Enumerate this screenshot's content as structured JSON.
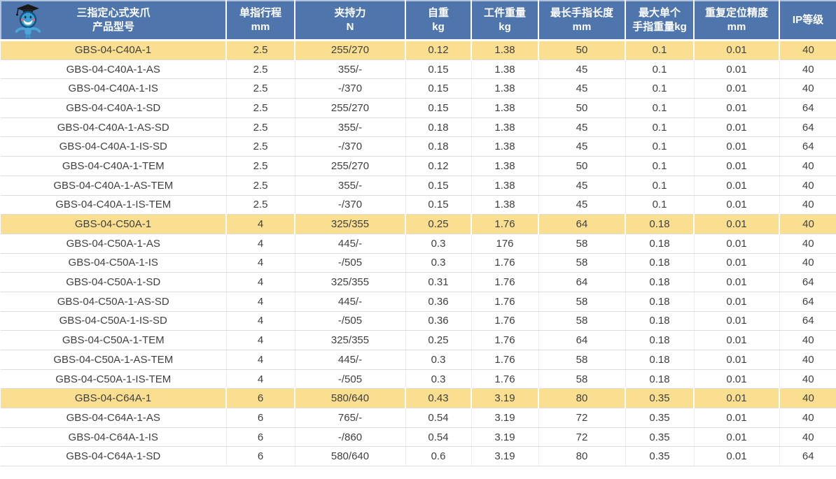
{
  "colors": {
    "header_bg": "#4e76ad",
    "header_text": "#ffffff",
    "highlight_row_bg": "#fbdf90",
    "row_text": "#3f3f3f",
    "row_divider": "#dcdcdc"
  },
  "table": {
    "title_line1": "三指定心式夹爪",
    "title_line2": "产品型号",
    "logo": "mascot-robot-icon",
    "columns": [
      {
        "line1": "单指行程",
        "line2": "mm"
      },
      {
        "line1": "夹持力",
        "line2": "N"
      },
      {
        "line1": "自重",
        "line2": "kg"
      },
      {
        "line1": "工件重量",
        "line2": "kg"
      },
      {
        "line1": "最长手指长度",
        "line2": "mm"
      },
      {
        "line1": "最大单个",
        "line2": "手指重量kg"
      },
      {
        "line1": "重复定位精度",
        "line2": "mm"
      },
      {
        "line1": "IP等级",
        "line2": ""
      }
    ],
    "rows": [
      {
        "model": "GBS-04-C40A-1",
        "highlight": true,
        "values": [
          "2.5",
          "255/270",
          "0.12",
          "1.38",
          "50",
          "0.1",
          "0.01",
          "40"
        ]
      },
      {
        "model": "GBS-04-C40A-1-AS",
        "highlight": false,
        "values": [
          "2.5",
          "355/-",
          "0.15",
          "1.38",
          "45",
          "0.1",
          "0.01",
          "40"
        ]
      },
      {
        "model": "GBS-04-C40A-1-IS",
        "highlight": false,
        "values": [
          "2.5",
          "-/370",
          "0.15",
          "1.38",
          "45",
          "0.1",
          "0.01",
          "40"
        ]
      },
      {
        "model": "GBS-04-C40A-1-SD",
        "highlight": false,
        "values": [
          "2.5",
          "255/270",
          "0.15",
          "1.38",
          "50",
          "0.1",
          "0.01",
          "64"
        ]
      },
      {
        "model": "GBS-04-C40A-1-AS-SD",
        "highlight": false,
        "values": [
          "2.5",
          "355/-",
          "0.18",
          "1.38",
          "45",
          "0.1",
          "0.01",
          "64"
        ]
      },
      {
        "model": "GBS-04-C40A-1-IS-SD",
        "highlight": false,
        "values": [
          "2.5",
          "-/370",
          "0.18",
          "1.38",
          "45",
          "0.1",
          "0.01",
          "64"
        ]
      },
      {
        "model": "GBS-04-C40A-1-TEM",
        "highlight": false,
        "values": [
          "2.5",
          "255/270",
          "0.12",
          "1.38",
          "50",
          "0.1",
          "0.01",
          "40"
        ]
      },
      {
        "model": "GBS-04-C40A-1-AS-TEM",
        "highlight": false,
        "values": [
          "2.5",
          "355/-",
          "0.15",
          "1.38",
          "45",
          "0.1",
          "0.01",
          "40"
        ]
      },
      {
        "model": "GBS-04-C40A-1-IS-TEM",
        "highlight": false,
        "values": [
          "2.5",
          "-/370",
          "0.15",
          "1.38",
          "45",
          "0.1",
          "0.01",
          "40"
        ]
      },
      {
        "model": "GBS-04-C50A-1",
        "highlight": true,
        "values": [
          "4",
          "325/355",
          "0.25",
          "1.76",
          "64",
          "0.18",
          "0.01",
          "40"
        ]
      },
      {
        "model": "GBS-04-C50A-1-AS",
        "highlight": false,
        "values": [
          "4",
          "445/-",
          "0.3",
          "176",
          "58",
          "0.18",
          "0.01",
          "40"
        ]
      },
      {
        "model": "GBS-04-C50A-1-IS",
        "highlight": false,
        "values": [
          "4",
          "-/505",
          "0.3",
          "1.76",
          "58",
          "0.18",
          "0.01",
          "40"
        ]
      },
      {
        "model": "GBS-04-C50A-1-SD",
        "highlight": false,
        "values": [
          "4",
          "325/355",
          "0.31",
          "1.76",
          "64",
          "0.18",
          "0.01",
          "64"
        ]
      },
      {
        "model": "GBS-04-C50A-1-AS-SD",
        "highlight": false,
        "values": [
          "4",
          "445/-",
          "0.36",
          "1.76",
          "58",
          "0.18",
          "0.01",
          "64"
        ]
      },
      {
        "model": "GBS-04-C50A-1-IS-SD",
        "highlight": false,
        "values": [
          "4",
          "-/505",
          "0.36",
          "1.76",
          "58",
          "0.18",
          "0.01",
          "64"
        ]
      },
      {
        "model": "GBS-04-C50A-1-TEM",
        "highlight": false,
        "values": [
          "4",
          "325/355",
          "0.25",
          "1.76",
          "64",
          "0.18",
          "0.01",
          "40"
        ]
      },
      {
        "model": "GBS-04-C50A-1-AS-TEM",
        "highlight": false,
        "values": [
          "4",
          "445/-",
          "0.3",
          "1.76",
          "58",
          "0.18",
          "0.01",
          "40"
        ]
      },
      {
        "model": "GBS-04-C50A-1-IS-TEM",
        "highlight": false,
        "values": [
          "4",
          "-/505",
          "0.3",
          "1.76",
          "58",
          "0.18",
          "0.01",
          "40"
        ]
      },
      {
        "model": "GBS-04-C64A-1",
        "highlight": true,
        "values": [
          "6",
          "580/640",
          "0.43",
          "3.19",
          "80",
          "0.35",
          "0.01",
          "40"
        ]
      },
      {
        "model": "GBS-04-C64A-1-AS",
        "highlight": false,
        "values": [
          "6",
          "765/-",
          "0.54",
          "3.19",
          "72",
          "0.35",
          "0.01",
          "40"
        ]
      },
      {
        "model": "GBS-04-C64A-1-IS",
        "highlight": false,
        "values": [
          "6",
          "-/860",
          "0.54",
          "3.19",
          "72",
          "0.35",
          "0.01",
          "40"
        ]
      },
      {
        "model": "GBS-04-C64A-1-SD",
        "highlight": false,
        "values": [
          "6",
          "580/640",
          "0.6",
          "3.19",
          "80",
          "0.35",
          "0.01",
          "64"
        ]
      }
    ]
  }
}
